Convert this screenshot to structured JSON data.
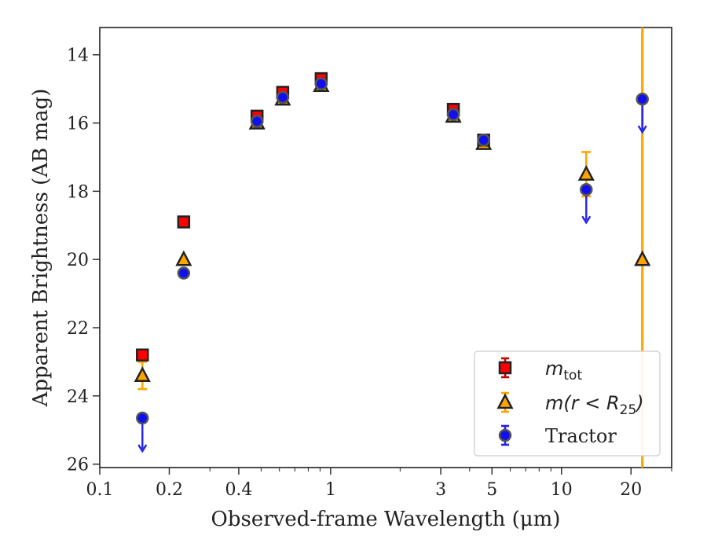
{
  "chart_data": {
    "type": "scatter",
    "xlabel": "Observed-frame Wavelength (μm)",
    "ylabel": "Apparent Brightness (AB mag)",
    "xscale": "log",
    "xlim": [
      0.1,
      30
    ],
    "ylim": [
      26.1,
      13.2
    ],
    "y_inverted": true,
    "xticks": [
      {
        "value": 0.1,
        "label": "0.1"
      },
      {
        "value": 0.2,
        "label": "0.2"
      },
      {
        "value": 0.4,
        "label": "0.4"
      },
      {
        "value": 1,
        "label": "1"
      },
      {
        "value": 3,
        "label": "3"
      },
      {
        "value": 5,
        "label": "5"
      },
      {
        "value": 10,
        "label": "10"
      },
      {
        "value": 20,
        "label": "20"
      }
    ],
    "yticks": [
      {
        "value": 14,
        "label": "14"
      },
      {
        "value": 16,
        "label": "16"
      },
      {
        "value": 18,
        "label": "18"
      },
      {
        "value": 20,
        "label": "20"
      },
      {
        "value": 22,
        "label": "22"
      },
      {
        "value": 24,
        "label": "24"
      },
      {
        "value": 26,
        "label": "26"
      }
    ],
    "grid": false,
    "legend_position": "lower right",
    "series": [
      {
        "name": "m_tot",
        "legend_label": {
          "main": "m",
          "sub": "tot"
        },
        "marker": "square",
        "color": "#ff0000",
        "edge_color": "#222222",
        "errorbar_color": "#cc0000",
        "points": [
          {
            "x": 0.153,
            "y": 22.8
          },
          {
            "x": 0.231,
            "y": 18.9
          },
          {
            "x": 0.48,
            "y": 15.8
          },
          {
            "x": 0.62,
            "y": 15.1
          },
          {
            "x": 0.91,
            "y": 14.7
          },
          {
            "x": 3.4,
            "y": 15.6
          },
          {
            "x": 4.6,
            "y": 16.5
          }
        ]
      },
      {
        "name": "m(r<R25)",
        "legend_label": {
          "main": "m(r < R",
          "sub": "25",
          "tail": ")"
        },
        "marker": "triangle",
        "color": "#ffa500",
        "edge_color": "#222222",
        "errorbar_color": "#ffa500",
        "points": [
          {
            "x": 0.153,
            "y": 23.4,
            "yerr": 0.4
          },
          {
            "x": 0.231,
            "y": 20.0
          },
          {
            "x": 0.48,
            "y": 16.0
          },
          {
            "x": 0.62,
            "y": 15.3
          },
          {
            "x": 0.91,
            "y": 14.9
          },
          {
            "x": 3.4,
            "y": 15.8
          },
          {
            "x": 4.6,
            "y": 16.6
          },
          {
            "x": 12.8,
            "y": 17.5,
            "yerr": 0.65
          },
          {
            "x": 22.4,
            "y": 20.0,
            "full_span_error": true
          }
        ]
      },
      {
        "name": "Tractor",
        "legend_label": {
          "main": "Tractor"
        },
        "marker": "circle",
        "color": "#1010ee",
        "edge_color": "#555555",
        "errorbar_color": "#2222ee",
        "points": [
          {
            "x": 0.153,
            "y": 24.65,
            "upper_limit": true
          },
          {
            "x": 0.231,
            "y": 20.4
          },
          {
            "x": 0.48,
            "y": 15.95
          },
          {
            "x": 0.62,
            "y": 15.25
          },
          {
            "x": 0.91,
            "y": 14.85
          },
          {
            "x": 3.4,
            "y": 15.75
          },
          {
            "x": 4.6,
            "y": 16.5
          },
          {
            "x": 12.8,
            "y": 17.95,
            "upper_limit": true
          },
          {
            "x": 22.4,
            "y": 15.3,
            "upper_limit": true
          }
        ]
      }
    ]
  }
}
